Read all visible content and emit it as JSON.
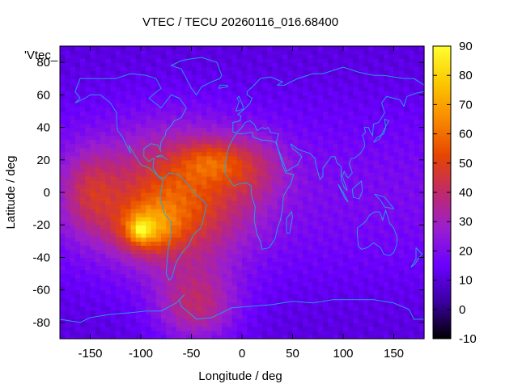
{
  "chart_data": {
    "type": "heatmap",
    "title": "VTEC / TECU 20260116_016.68400",
    "xlabel": "Longitude / deg",
    "ylabel": "Latitude / deg",
    "xlim": [
      -180,
      180
    ],
    "ylim": [
      -90,
      90
    ],
    "xticks": [
      -150,
      -100,
      -50,
      0,
      50,
      100,
      150
    ],
    "yticks": [
      -80,
      -60,
      -40,
      -20,
      0,
      20,
      40,
      60,
      80
    ],
    "colorbar": {
      "label_fragment": "'Vtec_",
      "range": [
        -10,
        90
      ],
      "ticks": [
        -10,
        0,
        10,
        20,
        30,
        40,
        50,
        60,
        70,
        80,
        90
      ],
      "colormap": [
        "#000000",
        "#3a00a0",
        "#6a00ff",
        "#9a1ecf",
        "#c02a6a",
        "#e64500",
        "#f98a00",
        "#fbc800",
        "#ffff30"
      ]
    },
    "background_vtec": 15,
    "features": [
      {
        "name": "equatorial-anomaly-main",
        "lon": -65,
        "lat": -5,
        "sigma_lon": 48,
        "sigma_lat": 28,
        "peak": 38
      },
      {
        "name": "southern-crest",
        "lon": -95,
        "lat": -22,
        "sigma_lon": 20,
        "sigma_lat": 10,
        "peak": 30
      },
      {
        "name": "northern-crest",
        "lon": -30,
        "lat": 20,
        "sigma_lon": 22,
        "sigma_lat": 9,
        "peak": 18
      },
      {
        "name": "southern-tongue",
        "lon": -45,
        "lat": -70,
        "sigma_lon": 28,
        "sigma_lat": 16,
        "peak": 25
      },
      {
        "name": "north-atlantic-extension",
        "lon": 10,
        "lat": 15,
        "sigma_lon": 25,
        "sigma_lat": 14,
        "peak": 15
      },
      {
        "name": "west-pacific-enhancement",
        "lon": -150,
        "lat": 0,
        "sigma_lon": 20,
        "sigma_lat": 18,
        "peak": 20
      },
      {
        "name": "local-max",
        "lon": -100,
        "lat": -23,
        "sigma_lon": 6,
        "sigma_lat": 4,
        "peak": 25
      }
    ],
    "coastline_color": "#1fa8e0"
  }
}
